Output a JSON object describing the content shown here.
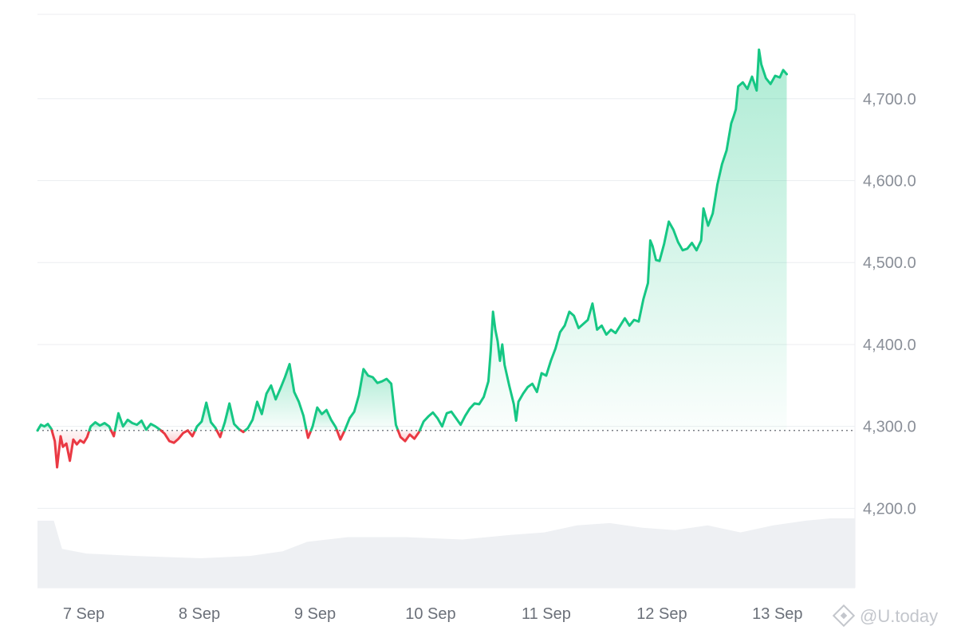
{
  "chart_data": {
    "type": "area",
    "title": "",
    "xlabel": "",
    "ylabel": "",
    "baseline": 4295,
    "ylim": [
      4103,
      4803
    ],
    "y_ticks": [
      4200,
      4300,
      4400,
      4500,
      4600,
      4700
    ],
    "y_tick_labels": [
      "4,200.0",
      "4,300.0",
      "4,400.0",
      "4,500.0",
      "4,600.0",
      "4,700.0"
    ],
    "x_range_days": [
      6.6,
      13.67
    ],
    "x_ticks": [
      {
        "label": "7 Sep",
        "day": 7
      },
      {
        "label": "8 Sep",
        "day": 8
      },
      {
        "label": "9 Sep",
        "day": 9
      },
      {
        "label": "10 Sep",
        "day": 10
      },
      {
        "label": "11 Sep",
        "day": 11
      },
      {
        "label": "12 Sep",
        "day": 12
      },
      {
        "label": "13 Sep",
        "day": 13
      }
    ],
    "colors": {
      "above": "#16c784",
      "below": "#ea3943",
      "volume": "#eef0f3",
      "grid": "#eceef1"
    },
    "series": [
      {
        "values": [
          [
            6.6,
            4295
          ],
          [
            6.63,
            4302
          ],
          [
            6.66,
            4300
          ],
          [
            6.69,
            4303
          ],
          [
            6.72,
            4297
          ],
          [
            6.75,
            4282
          ],
          [
            6.77,
            4250
          ],
          [
            6.8,
            4288
          ],
          [
            6.82,
            4275
          ],
          [
            6.85,
            4279
          ],
          [
            6.88,
            4258
          ],
          [
            6.91,
            4284
          ],
          [
            6.94,
            4278
          ],
          [
            6.97,
            4283
          ],
          [
            7.0,
            4280
          ],
          [
            7.03,
            4287
          ],
          [
            7.06,
            4300
          ],
          [
            7.1,
            4305
          ],
          [
            7.14,
            4301
          ],
          [
            7.18,
            4304
          ],
          [
            7.22,
            4300
          ],
          [
            7.26,
            4288
          ],
          [
            7.3,
            4316
          ],
          [
            7.34,
            4300
          ],
          [
            7.38,
            4308
          ],
          [
            7.42,
            4304
          ],
          [
            7.46,
            4302
          ],
          [
            7.5,
            4307
          ],
          [
            7.54,
            4296
          ],
          [
            7.58,
            4303
          ],
          [
            7.62,
            4300
          ],
          [
            7.66,
            4296
          ],
          [
            7.7,
            4291
          ],
          [
            7.74,
            4282
          ],
          [
            7.78,
            4280
          ],
          [
            7.82,
            4285
          ],
          [
            7.86,
            4292
          ],
          [
            7.9,
            4295
          ],
          [
            7.94,
            4288
          ],
          [
            7.98,
            4300
          ],
          [
            8.02,
            4306
          ],
          [
            8.06,
            4329
          ],
          [
            8.1,
            4305
          ],
          [
            8.14,
            4298
          ],
          [
            8.18,
            4287
          ],
          [
            8.22,
            4305
          ],
          [
            8.26,
            4328
          ],
          [
            8.3,
            4303
          ],
          [
            8.34,
            4297
          ],
          [
            8.38,
            4293
          ],
          [
            8.42,
            4298
          ],
          [
            8.46,
            4308
          ],
          [
            8.5,
            4330
          ],
          [
            8.54,
            4315
          ],
          [
            8.58,
            4340
          ],
          [
            8.62,
            4350
          ],
          [
            8.66,
            4333
          ],
          [
            8.7,
            4346
          ],
          [
            8.74,
            4360
          ],
          [
            8.78,
            4376
          ],
          [
            8.82,
            4342
          ],
          [
            8.86,
            4330
          ],
          [
            8.9,
            4313
          ],
          [
            8.94,
            4286
          ],
          [
            8.98,
            4300
          ],
          [
            9.02,
            4323
          ],
          [
            9.06,
            4315
          ],
          [
            9.1,
            4320
          ],
          [
            9.14,
            4308
          ],
          [
            9.18,
            4299
          ],
          [
            9.22,
            4284
          ],
          [
            9.26,
            4296
          ],
          [
            9.3,
            4310
          ],
          [
            9.34,
            4318
          ],
          [
            9.38,
            4338
          ],
          [
            9.42,
            4370
          ],
          [
            9.46,
            4362
          ],
          [
            9.5,
            4360
          ],
          [
            9.54,
            4353
          ],
          [
            9.58,
            4355
          ],
          [
            9.62,
            4358
          ],
          [
            9.66,
            4352
          ],
          [
            9.7,
            4302
          ],
          [
            9.74,
            4287
          ],
          [
            9.78,
            4282
          ],
          [
            9.82,
            4290
          ],
          [
            9.86,
            4285
          ],
          [
            9.9,
            4293
          ],
          [
            9.94,
            4306
          ],
          [
            9.98,
            4312
          ],
          [
            10.02,
            4317
          ],
          [
            10.06,
            4310
          ],
          [
            10.1,
            4300
          ],
          [
            10.14,
            4316
          ],
          [
            10.18,
            4318
          ],
          [
            10.22,
            4310
          ],
          [
            10.26,
            4302
          ],
          [
            10.3,
            4313
          ],
          [
            10.34,
            4322
          ],
          [
            10.38,
            4328
          ],
          [
            10.42,
            4327
          ],
          [
            10.46,
            4336
          ],
          [
            10.5,
            4355
          ],
          [
            10.52,
            4392
          ],
          [
            10.54,
            4440
          ],
          [
            10.56,
            4418
          ],
          [
            10.58,
            4404
          ],
          [
            10.6,
            4380
          ],
          [
            10.62,
            4400
          ],
          [
            10.64,
            4375
          ],
          [
            10.68,
            4350
          ],
          [
            10.72,
            4327
          ],
          [
            10.74,
            4307
          ],
          [
            10.76,
            4330
          ],
          [
            10.8,
            4340
          ],
          [
            10.84,
            4348
          ],
          [
            10.88,
            4352
          ],
          [
            10.92,
            4342
          ],
          [
            10.96,
            4365
          ],
          [
            11.0,
            4362
          ],
          [
            11.04,
            4380
          ],
          [
            11.08,
            4395
          ],
          [
            11.12,
            4415
          ],
          [
            11.16,
            4423
          ],
          [
            11.2,
            4440
          ],
          [
            11.24,
            4435
          ],
          [
            11.28,
            4420
          ],
          [
            11.32,
            4425
          ],
          [
            11.36,
            4430
          ],
          [
            11.4,
            4450
          ],
          [
            11.44,
            4418
          ],
          [
            11.48,
            4423
          ],
          [
            11.52,
            4412
          ],
          [
            11.56,
            4418
          ],
          [
            11.6,
            4414
          ],
          [
            11.64,
            4423
          ],
          [
            11.68,
            4432
          ],
          [
            11.72,
            4423
          ],
          [
            11.76,
            4430
          ],
          [
            11.8,
            4428
          ],
          [
            11.84,
            4455
          ],
          [
            11.88,
            4475
          ],
          [
            11.9,
            4527
          ],
          [
            11.92,
            4520
          ],
          [
            11.95,
            4503
          ],
          [
            11.98,
            4502
          ],
          [
            12.02,
            4523
          ],
          [
            12.06,
            4550
          ],
          [
            12.1,
            4540
          ],
          [
            12.14,
            4525
          ],
          [
            12.18,
            4515
          ],
          [
            12.22,
            4517
          ],
          [
            12.26,
            4524
          ],
          [
            12.3,
            4515
          ],
          [
            12.34,
            4527
          ],
          [
            12.36,
            4566
          ],
          [
            12.4,
            4545
          ],
          [
            12.44,
            4560
          ],
          [
            12.48,
            4595
          ],
          [
            12.52,
            4620
          ],
          [
            12.56,
            4637
          ],
          [
            12.6,
            4670
          ],
          [
            12.62,
            4678
          ],
          [
            12.64,
            4687
          ],
          [
            12.66,
            4715
          ],
          [
            12.7,
            4720
          ],
          [
            12.74,
            4712
          ],
          [
            12.78,
            4727
          ],
          [
            12.82,
            4710
          ],
          [
            12.84,
            4760
          ],
          [
            12.86,
            4742
          ],
          [
            12.9,
            4725
          ],
          [
            12.94,
            4718
          ],
          [
            12.98,
            4728
          ],
          [
            13.02,
            4726
          ],
          [
            13.05,
            4735
          ],
          [
            13.08,
            4730
          ]
        ]
      }
    ]
  },
  "watermark": {
    "text": "@U.today"
  }
}
